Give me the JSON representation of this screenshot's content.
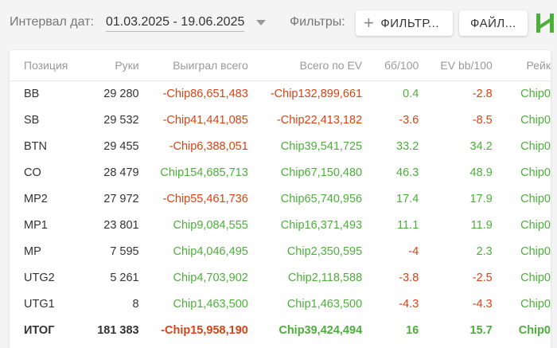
{
  "toolbar": {
    "date_label": "Интервал дат:",
    "date_range": "01.03.2025 - 19.06.2025",
    "filters_label": "Фильтры:",
    "filter_button": "ФИЛЬТР...",
    "file_button": "ФАЙЛ...",
    "brand_icon": "h-logo-icon"
  },
  "colors": {
    "positive": "#4caf3a",
    "negative": "#d84315",
    "accent": "#4caf3a"
  },
  "table": {
    "headers": [
      "Позиция",
      "Руки",
      "Выиграл всего",
      "Всего по EV",
      "бб/100",
      "EV bb/100",
      "Рейк"
    ],
    "rows": [
      {
        "pos": "BB",
        "hands": "29 280",
        "won": "-Chip86,651,483",
        "ev": "-Chip132,899,661",
        "bb100": "0.4",
        "evbb": "-2.8",
        "rake": "Chip0"
      },
      {
        "pos": "SB",
        "hands": "29 532",
        "won": "-Chip41,441,085",
        "ev": "-Chip22,413,182",
        "bb100": "-3.6",
        "evbb": "-8.5",
        "rake": "Chip0"
      },
      {
        "pos": "BTN",
        "hands": "29 455",
        "won": "-Chip6,388,051",
        "ev": "Chip39,541,725",
        "bb100": "33.2",
        "evbb": "34.2",
        "rake": "Chip0"
      },
      {
        "pos": "CO",
        "hands": "28 479",
        "won": "Chip154,685,713",
        "ev": "Chip67,150,480",
        "bb100": "46.3",
        "evbb": "48.9",
        "rake": "Chip0"
      },
      {
        "pos": "MP2",
        "hands": "27 972",
        "won": "-Chip55,461,736",
        "ev": "Chip65,740,956",
        "bb100": "17.4",
        "evbb": "17.9",
        "rake": "Chip0"
      },
      {
        "pos": "MP1",
        "hands": "23 801",
        "won": "Chip9,084,555",
        "ev": "Chip16,371,493",
        "bb100": "11.1",
        "evbb": "11.9",
        "rake": "Chip0"
      },
      {
        "pos": "MP",
        "hands": "7 595",
        "won": "Chip4,046,495",
        "ev": "Chip2,350,595",
        "bb100": "-4",
        "evbb": "2.3",
        "rake": "Chip0"
      },
      {
        "pos": "UTG2",
        "hands": "5 261",
        "won": "Chip4,703,902",
        "ev": "Chip2,118,588",
        "bb100": "-3.8",
        "evbb": "-2.5",
        "rake": "Chip0"
      },
      {
        "pos": "UTG1",
        "hands": "8",
        "won": "Chip1,463,500",
        "ev": "Chip1,463,500",
        "bb100": "-4.3",
        "evbb": "-4.3",
        "rake": "Chip0"
      }
    ],
    "total": {
      "pos": "ИТОГ",
      "hands": "181 383",
      "won": "-Chip15,958,190",
      "ev": "Chip39,424,494",
      "bb100": "16",
      "evbb": "15.7",
      "rake": "Chip0"
    }
  }
}
